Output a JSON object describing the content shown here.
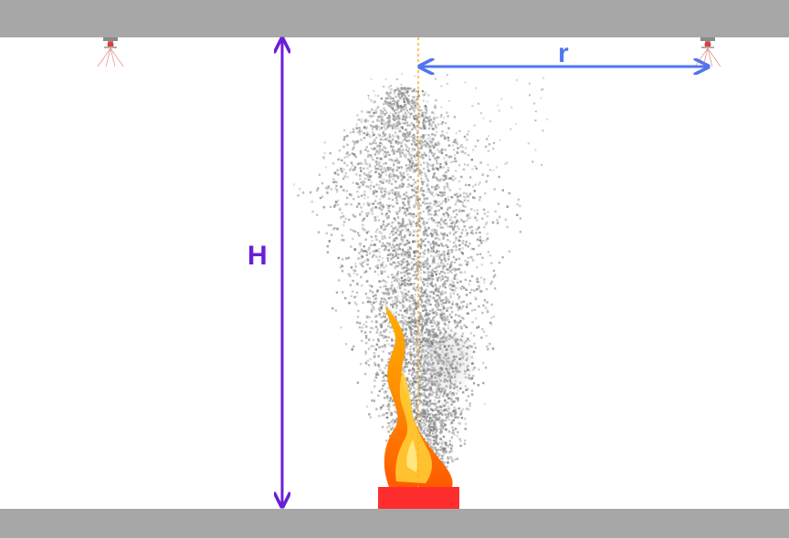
{
  "labels": {
    "height": "H",
    "radius": "r"
  },
  "colors": {
    "slab": "#a7a7a7",
    "height_arrow": "#6a1fd6",
    "radius_arrow": "#4f76f0",
    "centerline": "#f5b335",
    "fuel_pan": "#ff2d2d",
    "sprinkler_body": "#8a8a8a",
    "sprinkler_bulb": "#e23b3b"
  }
}
